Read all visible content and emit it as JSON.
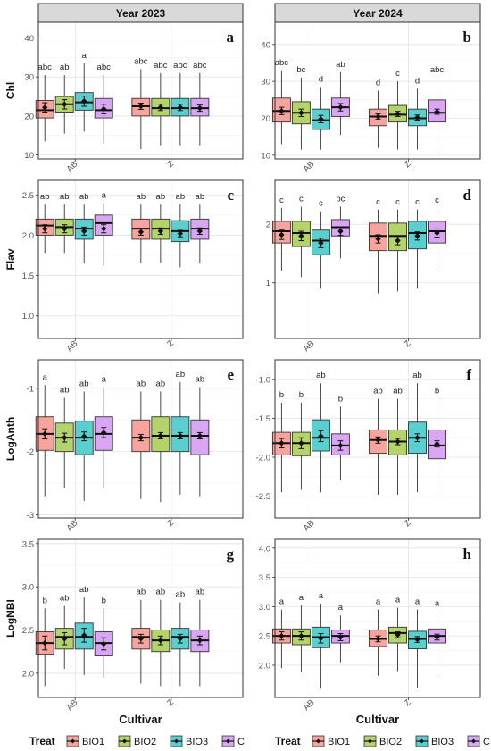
{
  "chart_data": {
    "type": "boxplot",
    "facet_columns": [
      "Year 2023",
      "Year 2024"
    ],
    "categories": [
      "AB",
      "Z"
    ],
    "xlabel": "Cultivar",
    "legend": {
      "title": "Treat",
      "placement": "bottom",
      "entries": [
        {
          "name": "BIO1",
          "color": "#F8A49E"
        },
        {
          "name": "BIO2",
          "color": "#B4D36B"
        },
        {
          "name": "BIO3",
          "color": "#5BCFD0"
        },
        {
          "name": "C",
          "color": "#D8A6F2"
        }
      ]
    },
    "panels": [
      {
        "id": "a",
        "row": 0,
        "col": 0,
        "ylabel": "Chl",
        "ylim": [
          9,
          44
        ],
        "yticks": [
          "10",
          "20",
          "30",
          "40"
        ],
        "yticks_values": [
          10,
          20,
          30,
          40
        ],
        "groups": [
          [
            {
              "min": 13.5,
              "q1": 19.5,
              "med": 21.5,
              "q3": 24,
              "max": 30.5,
              "mean": 22.2,
              "se": 1.2,
              "letter": "abc"
            },
            {
              "min": 15.5,
              "q1": 21,
              "med": 23,
              "q3": 25,
              "max": 30.5,
              "mean": 23,
              "se": 1.2,
              "letter": "ab"
            },
            {
              "min": 16,
              "q1": 21.5,
              "med": 23.5,
              "q3": 26,
              "max": 33.5,
              "mean": 23.8,
              "se": 1.3,
              "letter": "a"
            },
            {
              "min": 13,
              "q1": 19.5,
              "med": 21.5,
              "q3": 24.5,
              "max": 30.5,
              "mean": 21.8,
              "se": 1.2,
              "letter": "abc"
            }
          ],
          [
            {
              "min": 11.5,
              "q1": 20,
              "med": 22.5,
              "q3": 24.5,
              "max": 32,
              "mean": 22.5,
              "se": 0.8,
              "letter": "abc"
            },
            {
              "min": 12.5,
              "q1": 20,
              "med": 22,
              "q3": 24.5,
              "max": 31,
              "mean": 22.2,
              "se": 0.8,
              "letter": "abc"
            },
            {
              "min": 12.5,
              "q1": 20,
              "med": 22,
              "q3": 24.5,
              "max": 31,
              "mean": 22.2,
              "se": 0.8,
              "letter": "abc"
            },
            {
              "min": 12.5,
              "q1": 20,
              "med": 22,
              "q3": 24.5,
              "max": 31,
              "mean": 22,
              "se": 0.8,
              "letter": "abc"
            }
          ]
        ]
      },
      {
        "id": "b",
        "row": 0,
        "col": 1,
        "ylabel": "",
        "ylim": [
          9,
          46
        ],
        "yticks": [
          "10",
          "20",
          "30",
          "40"
        ],
        "yticks_values": [
          10,
          20,
          30,
          40
        ],
        "groups": [
          [
            {
              "min": 13,
              "q1": 19,
              "med": 22,
              "q3": 25.5,
              "max": 33,
              "mean": 22,
              "se": 1,
              "letter": "abc"
            },
            {
              "min": 11.5,
              "q1": 18.5,
              "med": 21.5,
              "q3": 24.5,
              "max": 31,
              "mean": 21.5,
              "se": 1,
              "letter": "bc"
            },
            {
              "min": 11.5,
              "q1": 17,
              "med": 19.5,
              "q3": 22.5,
              "max": 28.5,
              "mean": 19.8,
              "se": 1,
              "letter": "d"
            },
            {
              "min": 15.5,
              "q1": 20.5,
              "med": 23,
              "q3": 25.5,
              "max": 32.5,
              "mean": 23,
              "se": 1,
              "letter": "ab"
            }
          ],
          [
            {
              "min": 12,
              "q1": 18,
              "med": 20.5,
              "q3": 22.5,
              "max": 27.5,
              "mean": 20.5,
              "se": 0.7,
              "letter": "d"
            },
            {
              "min": 11.5,
              "q1": 19,
              "med": 21,
              "q3": 23.5,
              "max": 30,
              "mean": 21.2,
              "se": 0.7,
              "letter": "c"
            },
            {
              "min": 11.5,
              "q1": 18,
              "med": 20,
              "q3": 22.5,
              "max": 28,
              "mean": 20.2,
              "se": 0.7,
              "letter": "d"
            },
            {
              "min": 11,
              "q1": 19,
              "med": 21.5,
              "q3": 25,
              "max": 31,
              "mean": 21.8,
              "se": 0.7,
              "letter": "abc"
            }
          ]
        ]
      },
      {
        "id": "c",
        "row": 1,
        "col": 0,
        "ylabel": "Flav",
        "ylim": [
          0.72,
          2.68
        ],
        "yticks": [
          "1.0",
          "1.5",
          "2.0",
          "2.5"
        ],
        "yticks_values": [
          1.0,
          1.5,
          2.0,
          2.5
        ],
        "groups": [
          [
            {
              "min": 1.78,
              "q1": 2.0,
              "med": 2.12,
              "q3": 2.2,
              "max": 2.38,
              "mean": 2.08,
              "se": 0.05,
              "letter": "ab"
            },
            {
              "min": 1.78,
              "q1": 2.0,
              "med": 2.1,
              "q3": 2.2,
              "max": 2.38,
              "mean": 2.08,
              "se": 0.05,
              "letter": "ab"
            },
            {
              "min": 1.65,
              "q1": 1.95,
              "med": 2.08,
              "q3": 2.2,
              "max": 2.38,
              "mean": 2.05,
              "se": 0.05,
              "letter": "ab"
            },
            {
              "min": 1.62,
              "q1": 2.0,
              "med": 2.15,
              "q3": 2.25,
              "max": 2.4,
              "mean": 2.08,
              "se": 0.05,
              "letter": "a"
            }
          ],
          [
            {
              "min": 1.65,
              "q1": 1.95,
              "med": 2.08,
              "q3": 2.2,
              "max": 2.38,
              "mean": 2.04,
              "se": 0.04,
              "letter": "ab"
            },
            {
              "min": 1.65,
              "q1": 1.95,
              "med": 2.08,
              "q3": 2.2,
              "max": 2.38,
              "mean": 2.05,
              "se": 0.04,
              "letter": "ab"
            },
            {
              "min": 1.6,
              "q1": 1.92,
              "med": 2.05,
              "q3": 2.18,
              "max": 2.38,
              "mean": 2.02,
              "se": 0.04,
              "letter": "ab"
            },
            {
              "min": 1.65,
              "q1": 1.95,
              "med": 2.08,
              "q3": 2.2,
              "max": 2.38,
              "mean": 2.05,
              "se": 0.04,
              "letter": "ab"
            }
          ]
        ]
      },
      {
        "id": "d",
        "row": 1,
        "col": 1,
        "ylabel": "",
        "ylim": [
          0.05,
          2.75
        ],
        "yticks": [
          "1",
          "2"
        ],
        "yticks_values": [
          1,
          2
        ],
        "groups": [
          [
            {
              "min": 1.2,
              "q1": 1.68,
              "med": 1.88,
              "q3": 2.05,
              "max": 2.28,
              "mean": 1.82,
              "se": 0.08,
              "letter": "c"
            },
            {
              "min": 1.1,
              "q1": 1.62,
              "med": 1.85,
              "q3": 2.05,
              "max": 2.3,
              "mean": 1.8,
              "se": 0.08,
              "letter": "c"
            },
            {
              "min": 0.9,
              "q1": 1.48,
              "med": 1.72,
              "q3": 1.9,
              "max": 2.22,
              "mean": 1.68,
              "se": 0.08,
              "letter": "c"
            },
            {
              "min": 1.42,
              "q1": 1.8,
              "med": 1.95,
              "q3": 2.08,
              "max": 2.3,
              "mean": 1.88,
              "se": 0.07,
              "letter": "bc"
            }
          ],
          [
            {
              "min": 0.82,
              "q1": 1.55,
              "med": 1.8,
              "q3": 2.02,
              "max": 2.25,
              "mean": 1.75,
              "se": 0.07,
              "letter": "c"
            },
            {
              "min": 0.85,
              "q1": 1.55,
              "med": 1.8,
              "q3": 2.02,
              "max": 2.25,
              "mean": 1.72,
              "se": 0.07,
              "letter": "c"
            },
            {
              "min": 0.9,
              "q1": 1.58,
              "med": 1.85,
              "q3": 2.05,
              "max": 2.25,
              "mean": 1.8,
              "se": 0.07,
              "letter": "c"
            },
            {
              "min": 1.2,
              "q1": 1.68,
              "med": 1.88,
              "q3": 2.05,
              "max": 2.28,
              "mean": 1.85,
              "se": 0.07,
              "letter": "c"
            }
          ]
        ]
      },
      {
        "id": "e",
        "row": 2,
        "col": 0,
        "ylabel": "LogAnth",
        "ylim": [
          -3.05,
          -0.55
        ],
        "yticks": [
          "-3",
          "-2",
          "-1"
        ],
        "yticks_values": [
          -3,
          -2,
          -1
        ],
        "groups": [
          [
            {
              "min": -2.72,
              "q1": -1.98,
              "med": -1.72,
              "q3": -1.45,
              "max": -0.95,
              "mean": -1.72,
              "se": 0.08,
              "letter": "a"
            },
            {
              "min": -2.58,
              "q1": -2.0,
              "med": -1.78,
              "q3": -1.55,
              "max": -1.15,
              "mean": -1.78,
              "se": 0.07,
              "letter": "ab"
            },
            {
              "min": -2.78,
              "q1": -2.05,
              "med": -1.78,
              "q3": -1.52,
              "max": -1.05,
              "mean": -1.76,
              "se": 0.07,
              "letter": "ab"
            },
            {
              "min": -2.58,
              "q1": -1.98,
              "med": -1.72,
              "q3": -1.45,
              "max": -0.98,
              "mean": -1.7,
              "se": 0.08,
              "letter": "a"
            }
          ],
          [
            {
              "min": -2.75,
              "q1": -2.0,
              "med": -1.78,
              "q3": -1.5,
              "max": -1.05,
              "mean": -1.78,
              "se": 0.05,
              "letter": "ab"
            },
            {
              "min": -2.8,
              "q1": -2.0,
              "med": -1.75,
              "q3": -1.45,
              "max": -1.05,
              "mean": -1.75,
              "se": 0.05,
              "letter": "ab"
            },
            {
              "min": -2.68,
              "q1": -2.0,
              "med": -1.75,
              "q3": -1.45,
              "max": -0.9,
              "mean": -1.75,
              "se": 0.05,
              "letter": "ab"
            },
            {
              "min": -2.72,
              "q1": -2.05,
              "med": -1.75,
              "q3": -1.5,
              "max": -0.98,
              "mean": -1.75,
              "se": 0.05,
              "letter": "ab"
            }
          ]
        ]
      },
      {
        "id": "f",
        "row": 2,
        "col": 1,
        "ylabel": "",
        "ylim": [
          -2.78,
          -0.75
        ],
        "yticks": [
          "-2.5",
          "-2.0",
          "-1.5",
          "-1.0"
        ],
        "yticks_values": [
          -2.5,
          -2.0,
          -1.5,
          -1.0
        ],
        "groups": [
          [
            {
              "min": -2.45,
              "q1": -1.97,
              "med": -1.82,
              "q3": -1.68,
              "max": -1.3,
              "mean": -1.82,
              "se": 0.06,
              "letter": "b"
            },
            {
              "min": -2.42,
              "q1": -1.98,
              "med": -1.82,
              "q3": -1.68,
              "max": -1.3,
              "mean": -1.82,
              "se": 0.07,
              "letter": "b"
            },
            {
              "min": -2.45,
              "q1": -1.92,
              "med": -1.75,
              "q3": -1.52,
              "max": -1.05,
              "mean": -1.73,
              "se": 0.07,
              "letter": "ab"
            },
            {
              "min": -2.3,
              "q1": -1.97,
              "med": -1.85,
              "q3": -1.7,
              "max": -1.35,
              "mean": -1.85,
              "se": 0.06,
              "letter": "b"
            }
          ],
          [
            {
              "min": -2.48,
              "q1": -1.95,
              "med": -1.78,
              "q3": -1.65,
              "max": -1.25,
              "mean": -1.78,
              "se": 0.04,
              "letter": "ab"
            },
            {
              "min": -2.48,
              "q1": -1.97,
              "med": -1.8,
              "q3": -1.65,
              "max": -1.25,
              "mean": -1.8,
              "se": 0.04,
              "letter": "ab"
            },
            {
              "min": -2.45,
              "q1": -1.95,
              "med": -1.75,
              "q3": -1.55,
              "max": -1.05,
              "mean": -1.75,
              "se": 0.05,
              "letter": "ab"
            },
            {
              "min": -2.48,
              "q1": -2.02,
              "med": -1.85,
              "q3": -1.65,
              "max": -1.25,
              "mean": -1.83,
              "se": 0.04,
              "letter": "b"
            }
          ]
        ]
      },
      {
        "id": "g",
        "row": 3,
        "col": 0,
        "ylabel": "LogNBI",
        "ylim": [
          1.72,
          3.55
        ],
        "yticks": [
          "2.0",
          "2.5",
          "3.0",
          "3.5"
        ],
        "yticks_values": [
          2.0,
          2.5,
          3.0,
          3.5
        ],
        "groups": [
          [
            {
              "min": 1.85,
              "q1": 2.22,
              "med": 2.35,
              "q3": 2.48,
              "max": 2.75,
              "mean": 2.35,
              "se": 0.08,
              "letter": "b"
            },
            {
              "min": 2.05,
              "q1": 2.28,
              "med": 2.42,
              "q3": 2.52,
              "max": 2.78,
              "mean": 2.4,
              "se": 0.07,
              "letter": "ab"
            },
            {
              "min": 1.98,
              "q1": 2.28,
              "med": 2.42,
              "q3": 2.58,
              "max": 2.88,
              "mean": 2.44,
              "se": 0.08,
              "letter": "ab"
            },
            {
              "min": 1.95,
              "q1": 2.2,
              "med": 2.35,
              "q3": 2.48,
              "max": 2.75,
              "mean": 2.34,
              "se": 0.07,
              "letter": "b"
            }
          ],
          [
            {
              "min": 1.88,
              "q1": 2.28,
              "med": 2.42,
              "q3": 2.52,
              "max": 2.85,
              "mean": 2.4,
              "se": 0.05,
              "letter": "ab"
            },
            {
              "min": 1.85,
              "q1": 2.25,
              "med": 2.38,
              "q3": 2.5,
              "max": 2.85,
              "mean": 2.38,
              "se": 0.05,
              "letter": "ab"
            },
            {
              "min": 1.85,
              "q1": 2.28,
              "med": 2.42,
              "q3": 2.52,
              "max": 2.82,
              "mean": 2.4,
              "se": 0.05,
              "letter": "ab"
            },
            {
              "min": 1.85,
              "q1": 2.25,
              "med": 2.38,
              "q3": 2.5,
              "max": 2.85,
              "mean": 2.38,
              "se": 0.05,
              "letter": "ab"
            }
          ]
        ]
      },
      {
        "id": "h",
        "row": 3,
        "col": 1,
        "ylabel": "",
        "ylim": [
          1.45,
          4.15
        ],
        "yticks": [
          "2.0",
          "2.5",
          "3.0",
          "3.5",
          "4.0"
        ],
        "yticks_values": [
          2.0,
          2.5,
          3.0,
          3.5,
          4.0
        ],
        "groups": [
          [
            {
              "min": 1.95,
              "q1": 2.38,
              "med": 2.5,
              "q3": 2.62,
              "max": 2.95,
              "mean": 2.5,
              "se": 0.07,
              "letter": "a"
            },
            {
              "min": 1.88,
              "q1": 2.35,
              "med": 2.5,
              "q3": 2.62,
              "max": 3.02,
              "mean": 2.5,
              "se": 0.07,
              "letter": "a"
            },
            {
              "min": 1.6,
              "q1": 2.3,
              "med": 2.48,
              "q3": 2.65,
              "max": 3.05,
              "mean": 2.46,
              "se": 0.08,
              "letter": "a"
            },
            {
              "min": 2.05,
              "q1": 2.38,
              "med": 2.5,
              "q3": 2.6,
              "max": 2.85,
              "mean": 2.48,
              "se": 0.06,
              "letter": "a"
            }
          ],
          [
            {
              "min": 1.82,
              "q1": 2.32,
              "med": 2.45,
              "q3": 2.6,
              "max": 2.95,
              "mean": 2.45,
              "se": 0.05,
              "letter": "a"
            },
            {
              "min": 1.9,
              "q1": 2.38,
              "med": 2.55,
              "q3": 2.65,
              "max": 2.98,
              "mean": 2.52,
              "se": 0.05,
              "letter": "a"
            },
            {
              "min": 1.62,
              "q1": 2.28,
              "med": 2.45,
              "q3": 2.58,
              "max": 2.95,
              "mean": 2.44,
              "se": 0.05,
              "letter": "a"
            },
            {
              "min": 1.88,
              "q1": 2.38,
              "med": 2.5,
              "q3": 2.62,
              "max": 2.92,
              "mean": 2.48,
              "se": 0.05,
              "letter": "a"
            }
          ]
        ]
      }
    ]
  }
}
